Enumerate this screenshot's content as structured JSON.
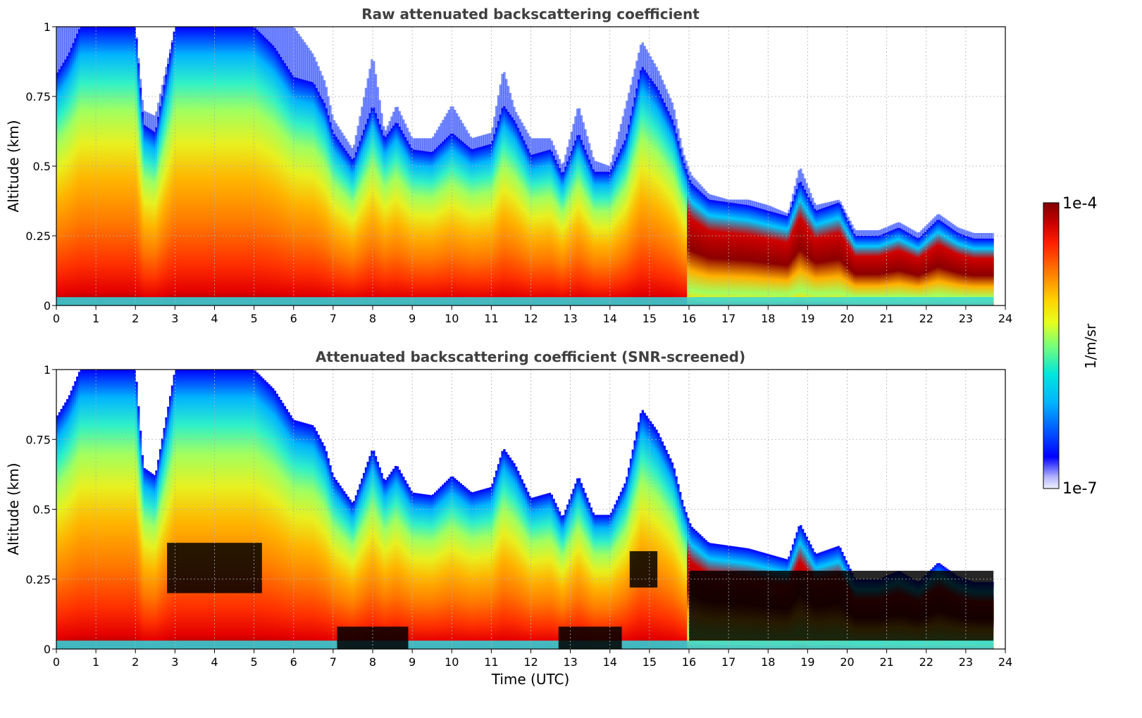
{
  "chart_data": [
    {
      "type": "heatmap",
      "title": "Raw attenuated backscattering coefficient",
      "xlabel": "",
      "ylabel": "Altitude (km)",
      "xlim": [
        0,
        24
      ],
      "ylim": [
        0,
        1
      ],
      "x_ticks": [
        "0",
        "1",
        "2",
        "3",
        "4",
        "5",
        "6",
        "7",
        "8",
        "9",
        "10",
        "11",
        "12",
        "13",
        "14",
        "15",
        "16",
        "17",
        "18",
        "19",
        "20",
        "21",
        "22",
        "23",
        "24"
      ],
      "y_ticks": [
        "0",
        "0.25",
        "0.5",
        "0.75",
        "1"
      ],
      "grid": true,
      "screened": false
    },
    {
      "type": "heatmap",
      "title": "Attenuated backscattering coefficient (SNR-screened)",
      "xlabel": "Time (UTC)",
      "ylabel": "Altitude (km)",
      "xlim": [
        0,
        24
      ],
      "ylim": [
        0,
        1
      ],
      "x_ticks": [
        "0",
        "1",
        "2",
        "3",
        "4",
        "5",
        "6",
        "7",
        "8",
        "9",
        "10",
        "11",
        "12",
        "13",
        "14",
        "15",
        "16",
        "17",
        "18",
        "19",
        "20",
        "21",
        "22",
        "23",
        "24"
      ],
      "y_ticks": [
        "0",
        "0.25",
        "0.5",
        "0.75",
        "1"
      ],
      "grid": true,
      "screened": true
    }
  ],
  "colorbar": {
    "min_label": "1e-7",
    "max_label": "1e-4",
    "label": "1/m/sr",
    "scale": "log",
    "colormap": "jet"
  },
  "profile": {
    "times": [
      0,
      0.3,
      0.6,
      1.0,
      1.5,
      2.0,
      2.2,
      2.5,
      3.0,
      3.5,
      4.0,
      5.0,
      5.5,
      6.0,
      6.5,
      6.8,
      7.0,
      7.5,
      8.0,
      8.3,
      8.6,
      9.0,
      9.5,
      10.0,
      10.5,
      11.0,
      11.3,
      11.6,
      12.0,
      12.5,
      12.8,
      13.2,
      13.6,
      14.0,
      14.4,
      14.8,
      15.2,
      15.6,
      15.85,
      16.05,
      16.5,
      17.0,
      17.5,
      18.0,
      18.5,
      18.8,
      19.2,
      19.8,
      20.2,
      20.8,
      21.3,
      21.8,
      22.3,
      22.8,
      23.2,
      23.7
    ],
    "cloud_top_km": [
      0.83,
      0.9,
      1.0,
      1.0,
      1.0,
      1.0,
      0.65,
      0.62,
      1.0,
      1.0,
      1.0,
      1.0,
      0.93,
      0.82,
      0.8,
      0.72,
      0.62,
      0.52,
      0.72,
      0.6,
      0.66,
      0.56,
      0.55,
      0.62,
      0.56,
      0.58,
      0.72,
      0.66,
      0.54,
      0.56,
      0.47,
      0.62,
      0.48,
      0.48,
      0.6,
      0.86,
      0.78,
      0.66,
      0.52,
      0.44,
      0.38,
      0.37,
      0.36,
      0.34,
      0.32,
      0.45,
      0.34,
      0.37,
      0.25,
      0.25,
      0.28,
      0.24,
      0.31,
      0.26,
      0.24,
      0.24
    ],
    "raw_fringe_top_km": [
      1.0,
      1.0,
      1.0,
      1.0,
      1.0,
      1.0,
      0.7,
      0.68,
      1.0,
      1.0,
      1.0,
      1.0,
      1.0,
      1.0,
      0.9,
      0.8,
      0.67,
      0.56,
      0.9,
      0.62,
      0.72,
      0.6,
      0.6,
      0.72,
      0.6,
      0.62,
      0.85,
      0.7,
      0.6,
      0.6,
      0.5,
      0.72,
      0.52,
      0.5,
      0.72,
      0.95,
      0.85,
      0.72,
      0.55,
      0.47,
      0.4,
      0.38,
      0.38,
      0.36,
      0.33,
      0.5,
      0.36,
      0.38,
      0.27,
      0.27,
      0.3,
      0.26,
      0.33,
      0.28,
      0.26,
      0.26
    ],
    "data_end_time": 23.7
  }
}
